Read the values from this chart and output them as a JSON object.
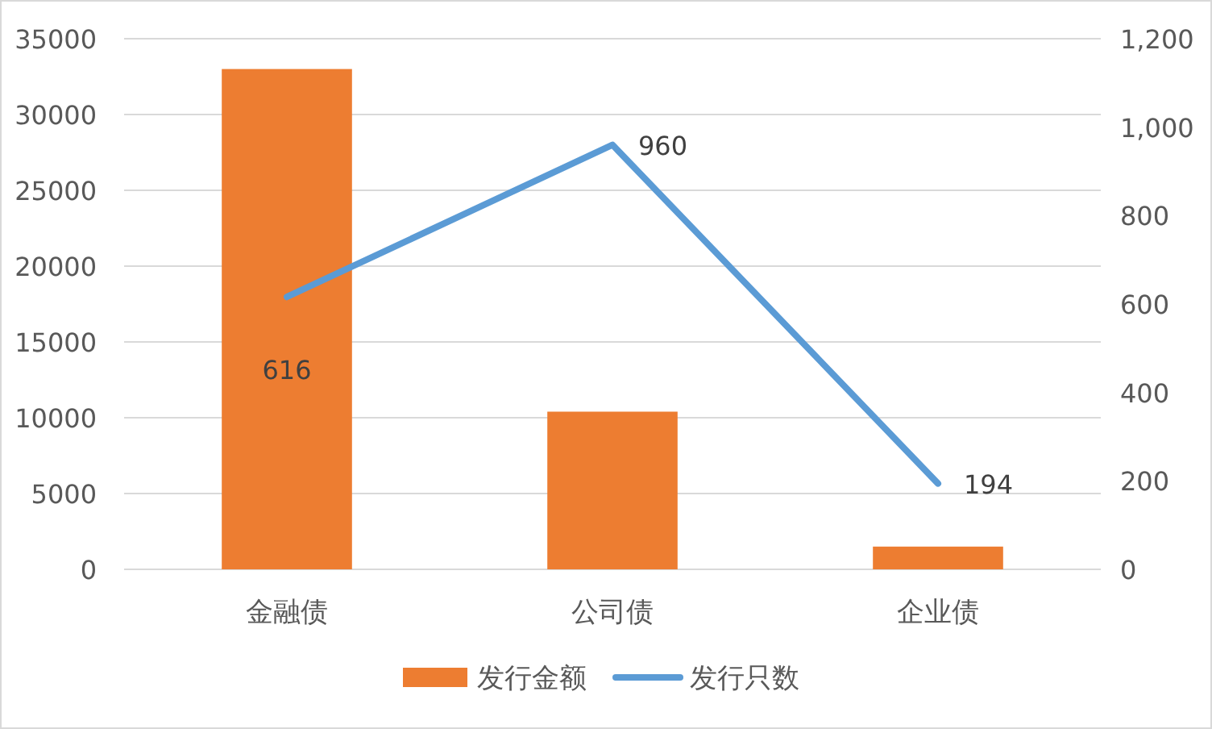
{
  "chart_data": {
    "type": "bar",
    "categories": [
      "金融债",
      "公司债",
      "企业债"
    ],
    "series": [
      {
        "name": "发行金额",
        "color": "#ed7d31",
        "values": [
          33000,
          10400,
          1500
        ]
      },
      {
        "name": "发行只数",
        "type": "line",
        "axis": "y2",
        "color": "#5b9bd5",
        "values": [
          616,
          960,
          194
        ],
        "value_labels": [
          "616",
          "960",
          "194"
        ]
      }
    ],
    "ylim": [
      0,
      35000
    ],
    "yticks": [
      0,
      5000,
      10000,
      15000,
      20000,
      25000,
      30000,
      35000
    ],
    "y2lim": [
      0,
      1200
    ],
    "y2ticks": [
      0,
      200,
      400,
      600,
      800,
      {
        "value": 1000,
        "label": "1,000"
      },
      {
        "value": 1200,
        "label": "1,200"
      }
    ],
    "grid": "y",
    "legend": "bottom",
    "marker": "none",
    "line_style": "solid"
  }
}
